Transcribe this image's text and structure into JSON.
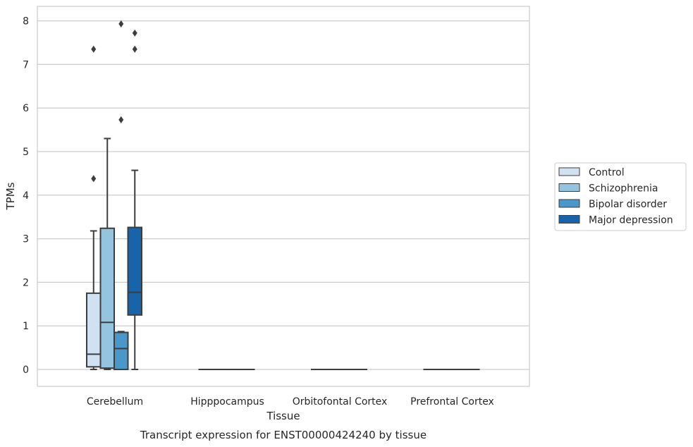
{
  "chart_data": {
    "type": "box",
    "xlabel": "Tissue",
    "ylabel": "TPMs",
    "caption": "Transcript expression for ENST00000424240 by tissue",
    "ylim": [
      -0.4,
      8.35
    ],
    "yticks": [
      0,
      1,
      2,
      3,
      4,
      5,
      6,
      7,
      8
    ],
    "grid": "horizontal",
    "legend_position": "right",
    "categories": [
      "Cerebellum",
      "Hipppocampus",
      "Orbitofontal Cortex",
      "Prefrontal Cortex"
    ],
    "series": [
      {
        "name": "Control",
        "color": "#d0e1f2",
        "boxes": [
          {
            "whislo": 0.0,
            "q1": 0.06,
            "med": 0.35,
            "q3": 1.75,
            "whishi": 3.18,
            "fliers": [
              7.35,
              4.38
            ]
          },
          {
            "whislo": 0,
            "q1": 0,
            "med": 0,
            "q3": 0,
            "whishi": 0,
            "fliers": []
          },
          {
            "whislo": 0,
            "q1": 0,
            "med": 0,
            "q3": 0,
            "whishi": 0,
            "fliers": []
          },
          {
            "whislo": 0,
            "q1": 0,
            "med": 0,
            "q3": 0,
            "whishi": 0,
            "fliers": []
          }
        ]
      },
      {
        "name": "Schizophrenia",
        "color": "#94c4df",
        "boxes": [
          {
            "whislo": 0.0,
            "q1": 0.03,
            "med": 1.08,
            "q3": 3.24,
            "whishi": 5.3,
            "fliers": []
          },
          {
            "whislo": 0,
            "q1": 0,
            "med": 0,
            "q3": 0,
            "whishi": 0,
            "fliers": []
          },
          {
            "whislo": 0,
            "q1": 0,
            "med": 0,
            "q3": 0,
            "whishi": 0,
            "fliers": []
          },
          {
            "whislo": 0,
            "q1": 0,
            "med": 0,
            "q3": 0,
            "whishi": 0,
            "fliers": []
          }
        ]
      },
      {
        "name": "Bipolar disorder",
        "color": "#4a98c9",
        "boxes": [
          {
            "whislo": 0.0,
            "q1": 0.0,
            "med": 0.48,
            "q3": 0.85,
            "whishi": 0.87,
            "fliers": [
              7.93,
              5.73
            ]
          },
          {
            "whislo": 0,
            "q1": 0,
            "med": 0,
            "q3": 0,
            "whishi": 0,
            "fliers": []
          },
          {
            "whislo": 0,
            "q1": 0,
            "med": 0,
            "q3": 0,
            "whishi": 0,
            "fliers": []
          },
          {
            "whislo": 0,
            "q1": 0,
            "med": 0,
            "q3": 0,
            "whishi": 0,
            "fliers": []
          }
        ]
      },
      {
        "name": "Major depression",
        "color": "#1764ab",
        "boxes": [
          {
            "whislo": 0.0,
            "q1": 1.25,
            "med": 1.77,
            "q3": 3.26,
            "whishi": 4.57,
            "fliers": [
              7.72,
              7.35
            ]
          },
          {
            "whislo": 0,
            "q1": 0,
            "med": 0,
            "q3": 0,
            "whishi": 0,
            "fliers": []
          },
          {
            "whislo": 0,
            "q1": 0,
            "med": 0,
            "q3": 0,
            "whishi": 0,
            "fliers": []
          },
          {
            "whislo": 0,
            "q1": 0,
            "med": 0,
            "q3": 0,
            "whishi": 0,
            "fliers": []
          }
        ]
      }
    ]
  }
}
